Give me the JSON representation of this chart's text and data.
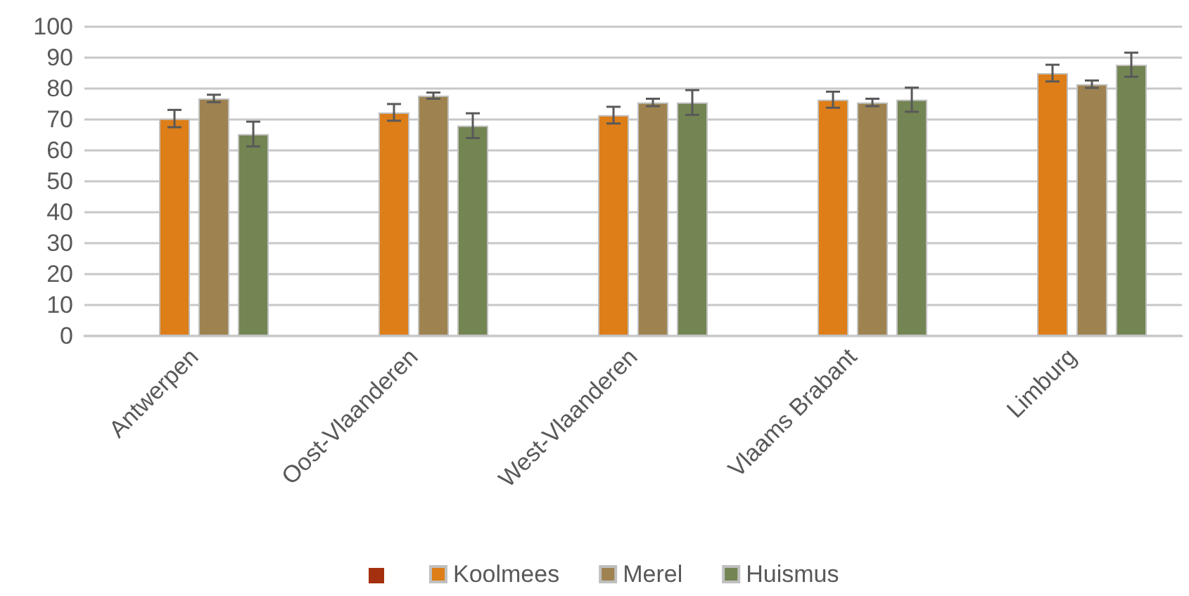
{
  "chart_data": {
    "type": "bar",
    "categories": [
      "Antwerpen",
      "Oost-Vlaanderen",
      "West-Vlaanderen",
      "Vlaams Brabant",
      "Limburg"
    ],
    "series": [
      {
        "color": "#a5300f",
        "values": [
          null,
          null,
          null,
          null,
          null
        ]
      },
      {
        "name": "Koolmees",
        "color": "#dd7e18",
        "values": [
          70.3,
          72.3,
          71.4,
          76.4,
          85
        ],
        "errors": [
          2.8,
          2.7,
          2.7,
          2.6,
          2.7
        ]
      },
      {
        "name": "Merel",
        "color": "#9e8350",
        "values": [
          76.8,
          77.7,
          75.5,
          75.5,
          81.4
        ],
        "errors": [
          1.2,
          1,
          1.2,
          1.2,
          1.2
        ]
      },
      {
        "name": "Huismus",
        "color": "#738552",
        "values": [
          65.3,
          68,
          75.5,
          76.4,
          87.7
        ],
        "errors": [
          4,
          4,
          4,
          3.9,
          3.9
        ]
      }
    ],
    "ylim": [
      0,
      100
    ],
    "yticks": [
      0,
      10,
      20,
      30,
      40,
      50,
      60,
      70,
      80,
      90,
      100
    ],
    "grid": "y",
    "legend": "bottom"
  }
}
